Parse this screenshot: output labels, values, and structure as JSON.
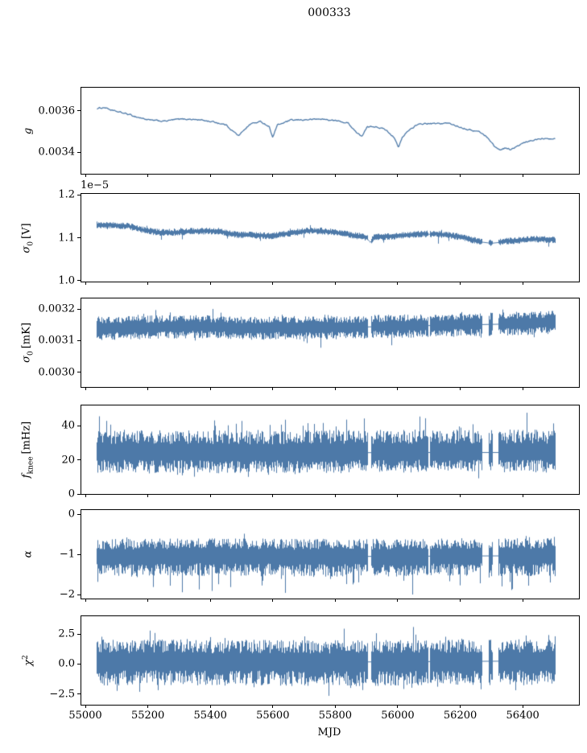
{
  "title": "000333",
  "line_color": "#4d79a8",
  "frame_color": "#000000",
  "x_axis": {
    "label": "MJD",
    "lim": [
      54987,
      56580
    ],
    "ticks": [
      {
        "v": 55000,
        "label": "55000"
      },
      {
        "v": 55200,
        "label": "55200"
      },
      {
        "v": 55400,
        "label": "55400"
      },
      {
        "v": 55600,
        "label": "55600"
      },
      {
        "v": 55800,
        "label": "55800"
      },
      {
        "v": 56000,
        "label": "56000"
      },
      {
        "v": 56200,
        "label": "56200"
      },
      {
        "v": 56400,
        "label": "56400"
      }
    ]
  },
  "chart_data": [
    {
      "id": "g",
      "type": "line",
      "ylabel": {
        "main": "g",
        "sub": "",
        "sup": "",
        "suffix": ""
      },
      "offset_text": "",
      "ylim": [
        0.003295,
        0.003712
      ],
      "yticks": [
        {
          "v": 0.0036,
          "label": "0.0036"
        },
        {
          "v": 0.0034,
          "label": "0.0034"
        }
      ],
      "series": {
        "style": "line",
        "x_start": 55035,
        "x_end": 56505,
        "jitter": 8e-06,
        "gaps": [],
        "trend": [
          [
            55035,
            0.00361
          ],
          [
            55062,
            0.003617
          ],
          [
            55090,
            0.003599
          ],
          [
            55130,
            0.003586
          ],
          [
            55170,
            0.003568
          ],
          [
            55212,
            0.003553
          ],
          [
            55252,
            0.00355
          ],
          [
            55292,
            0.003558
          ],
          [
            55332,
            0.00356
          ],
          [
            55372,
            0.003555
          ],
          [
            55412,
            0.003546
          ],
          [
            55450,
            0.003532
          ],
          [
            55480,
            0.003492
          ],
          [
            55492,
            0.003478
          ],
          [
            55507,
            0.003508
          ],
          [
            55530,
            0.003538
          ],
          [
            55562,
            0.003547
          ],
          [
            55588,
            0.003525
          ],
          [
            55600,
            0.003472
          ],
          [
            55614,
            0.00353
          ],
          [
            55655,
            0.003553
          ],
          [
            55705,
            0.003557
          ],
          [
            55755,
            0.00356
          ],
          [
            55802,
            0.003552
          ],
          [
            55842,
            0.00354
          ],
          [
            55872,
            0.003488
          ],
          [
            55886,
            0.003478
          ],
          [
            55902,
            0.00352
          ],
          [
            55932,
            0.003525
          ],
          [
            55962,
            0.003508
          ],
          [
            55990,
            0.00347
          ],
          [
            56002,
            0.00342
          ],
          [
            56014,
            0.003468
          ],
          [
            56032,
            0.003502
          ],
          [
            56056,
            0.003528
          ],
          [
            56086,
            0.003538
          ],
          [
            56126,
            0.003537
          ],
          [
            56160,
            0.00354
          ],
          [
            56196,
            0.003524
          ],
          [
            56230,
            0.003508
          ],
          [
            56262,
            0.003498
          ],
          [
            56290,
            0.003468
          ],
          [
            56308,
            0.00343
          ],
          [
            56326,
            0.00341
          ],
          [
            56344,
            0.003421
          ],
          [
            56362,
            0.003412
          ],
          [
            56382,
            0.003427
          ],
          [
            56402,
            0.003443
          ],
          [
            56427,
            0.003454
          ],
          [
            56452,
            0.003465
          ],
          [
            56480,
            0.003469
          ],
          [
            56505,
            0.003467
          ]
        ]
      }
    },
    {
      "id": "sigma0_V",
      "type": "line",
      "ylabel": {
        "main": "σ",
        "sub": "0",
        "sup": "",
        "suffix": "[V]"
      },
      "offset_text": "1e−5",
      "ylim": [
        0.998,
        1.202
      ],
      "yticks": [
        {
          "v": 1.2,
          "label": "1.2"
        },
        {
          "v": 1.1,
          "label": "1.1"
        },
        {
          "v": 1.0,
          "label": "1.0"
        }
      ],
      "series": {
        "style": "band",
        "x_start": 55035,
        "x_end": 56505,
        "band": {
          "up": 0.0065,
          "dn": 0.0068,
          "spike_up": 0.006,
          "p_up": 0.02,
          "spike_dn": 0.016,
          "p_dn": 0.025
        },
        "gaps": [
          [
            55905,
            55915
          ],
          [
            56098,
            56104
          ],
          [
            56270,
            56292
          ],
          [
            56305,
            56322
          ]
        ],
        "trend": [
          [
            55035,
            1.13
          ],
          [
            55090,
            1.129
          ],
          [
            55140,
            1.127
          ],
          [
            55185,
            1.118
          ],
          [
            55230,
            1.113
          ],
          [
            55285,
            1.112
          ],
          [
            55340,
            1.115
          ],
          [
            55395,
            1.116
          ],
          [
            55440,
            1.113
          ],
          [
            55490,
            1.107
          ],
          [
            55545,
            1.106
          ],
          [
            55595,
            1.104
          ],
          [
            55650,
            1.11
          ],
          [
            55705,
            1.116
          ],
          [
            55755,
            1.116
          ],
          [
            55805,
            1.112
          ],
          [
            55855,
            1.106
          ],
          [
            55900,
            1.101
          ],
          [
            55912,
            1.09
          ],
          [
            55925,
            1.101
          ],
          [
            55975,
            1.103
          ],
          [
            56025,
            1.106
          ],
          [
            56075,
            1.109
          ],
          [
            56125,
            1.109
          ],
          [
            56175,
            1.105
          ],
          [
            56215,
            1.1
          ],
          [
            56255,
            1.092
          ],
          [
            56300,
            1.088
          ],
          [
            56350,
            1.092
          ],
          [
            56400,
            1.095
          ],
          [
            56450,
            1.097
          ],
          [
            56505,
            1.095
          ]
        ]
      }
    },
    {
      "id": "sigma0_mK",
      "type": "line",
      "ylabel": {
        "main": "σ",
        "sub": "0",
        "sup": "",
        "suffix": "[mK]"
      },
      "offset_text": "",
      "ylim": [
        0.002954,
        0.003233
      ],
      "yticks": [
        {
          "v": 0.0032,
          "label": "0.0032"
        },
        {
          "v": 0.0031,
          "label": "0.0031"
        },
        {
          "v": 0.003,
          "label": "0.0030"
        }
      ],
      "series": {
        "style": "band",
        "x_start": 55035,
        "x_end": 56505,
        "band": {
          "up": 3e-05,
          "dn": 3.2e-05,
          "spike_up": 2.2e-05,
          "p_up": 0.03,
          "spike_dn": 4.5e-05,
          "p_dn": 0.03
        },
        "gaps": [
          [
            55905,
            55915
          ],
          [
            56098,
            56104
          ],
          [
            56270,
            56292
          ],
          [
            56305,
            56322
          ]
        ],
        "trend": [
          [
            55035,
            0.00314
          ],
          [
            55200,
            0.003143
          ],
          [
            55360,
            0.003146
          ],
          [
            55520,
            0.003141
          ],
          [
            55680,
            0.003142
          ],
          [
            55840,
            0.003143
          ],
          [
            56000,
            0.003147
          ],
          [
            56160,
            0.00315
          ],
          [
            56320,
            0.003153
          ],
          [
            56505,
            0.003159
          ]
        ]
      }
    },
    {
      "id": "f_knee",
      "type": "line",
      "ylabel": {
        "main": "f",
        "sub": "knee",
        "sup": "",
        "suffix": "[mHz]"
      },
      "offset_text": "",
      "ylim": [
        0,
        51.8
      ],
      "yticks": [
        {
          "v": 40,
          "label": "40"
        },
        {
          "v": 20,
          "label": "20"
        },
        {
          "v": 0,
          "label": "0"
        }
      ],
      "series": {
        "style": "band",
        "x_start": 55035,
        "x_end": 56505,
        "band": {
          "up": 11,
          "dn": 10,
          "spike_up": 10,
          "p_up": 0.05,
          "spike_dn": 5.5,
          "p_dn": 0.04
        },
        "gaps": [
          [
            55905,
            55915
          ],
          [
            56098,
            56104
          ],
          [
            56270,
            56292
          ],
          [
            56305,
            56322
          ]
        ],
        "trend": [
          [
            55035,
            24.5
          ],
          [
            55500,
            24.0
          ],
          [
            56000,
            24.5
          ],
          [
            56505,
            24.5
          ]
        ]
      }
    },
    {
      "id": "alpha",
      "type": "line",
      "ylabel": {
        "main": "α",
        "sub": "",
        "sup": "",
        "suffix": ""
      },
      "offset_text": "",
      "ylim": [
        -2.1,
        0.1
      ],
      "yticks": [
        {
          "v": 0,
          "label": "0"
        },
        {
          "v": -1,
          "label": "−1"
        },
        {
          "v": -2,
          "label": "−2"
        }
      ],
      "series": {
        "style": "band",
        "x_start": 55035,
        "x_end": 56505,
        "band": {
          "up": 0.36,
          "dn": 0.43,
          "spike_up": 0.18,
          "p_up": 0.04,
          "spike_dn": 0.5,
          "p_dn": 0.04
        },
        "gaps": [
          [
            55905,
            55915
          ],
          [
            56098,
            56104
          ],
          [
            56270,
            56292
          ],
          [
            56305,
            56322
          ]
        ],
        "trend": [
          [
            55035,
            -1.05
          ],
          [
            55400,
            -1.02
          ],
          [
            55700,
            -1.05
          ],
          [
            56000,
            -1.04
          ],
          [
            56300,
            -1.03
          ],
          [
            56505,
            -1.03
          ]
        ]
      }
    },
    {
      "id": "chi2",
      "type": "line",
      "ylabel": {
        "main": "χ",
        "sub": "",
        "sup": "2",
        "suffix": ""
      },
      "offset_text": "",
      "ylim": [
        -3.37,
        3.97
      ],
      "yticks": [
        {
          "v": 2.5,
          "label": "2.5"
        },
        {
          "v": 0,
          "label": "0.0"
        },
        {
          "v": -2.5,
          "label": "−2.5"
        }
      ],
      "series": {
        "style": "band",
        "x_start": 55035,
        "x_end": 56505,
        "band": {
          "up": 1.5,
          "dn": 1.7,
          "spike_up": 1.3,
          "p_up": 0.05,
          "spike_dn": 1.1,
          "p_dn": 0.05
        },
        "gaps": [
          [
            55905,
            55915
          ],
          [
            56098,
            56104
          ],
          [
            56270,
            56292
          ],
          [
            56305,
            56322
          ]
        ],
        "trend": [
          [
            55035,
            0.25
          ],
          [
            55800,
            0.2
          ],
          [
            56505,
            0.3
          ]
        ]
      }
    }
  ]
}
